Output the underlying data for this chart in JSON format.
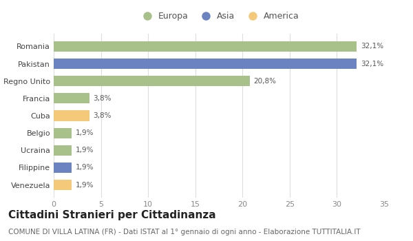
{
  "categories": [
    "Venezuela",
    "Filippine",
    "Ucraina",
    "Belgio",
    "Cuba",
    "Francia",
    "Regno Unito",
    "Pakistan",
    "Romania"
  ],
  "values": [
    1.9,
    1.9,
    1.9,
    1.9,
    3.8,
    3.8,
    20.8,
    32.1,
    32.1
  ],
  "labels": [
    "1,9%",
    "1,9%",
    "1,9%",
    "1,9%",
    "3,8%",
    "3,8%",
    "20,8%",
    "32,1%",
    "32,1%"
  ],
  "colors": [
    "#f5c97a",
    "#6b83c0",
    "#a8c08a",
    "#a8c08a",
    "#f5c97a",
    "#a8c08a",
    "#a8c08a",
    "#6b83c0",
    "#a8c08a"
  ],
  "legend_labels": [
    "Europa",
    "Asia",
    "America"
  ],
  "legend_colors": [
    "#a8c08a",
    "#6b83c0",
    "#f5c97a"
  ],
  "title": "Cittadini Stranieri per Cittadinanza",
  "subtitle": "COMUNE DI VILLA LATINA (FR) - Dati ISTAT al 1° gennaio di ogni anno - Elaborazione TUTTITALIA.IT",
  "xlim": [
    0,
    35
  ],
  "xticks": [
    0,
    5,
    10,
    15,
    20,
    25,
    30,
    35
  ],
  "bg_color": "#ffffff",
  "bar_bg_color": "#ffffff",
  "title_fontsize": 11,
  "subtitle_fontsize": 7.5,
  "label_fontsize": 7.5,
  "tick_fontsize": 8,
  "legend_fontsize": 9
}
